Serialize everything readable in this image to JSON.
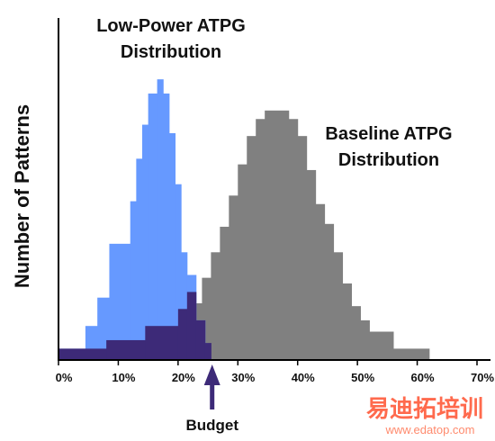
{
  "chart_data": {
    "type": "histogram",
    "ylabel": "Number of Patterns",
    "xlim": [
      0,
      72
    ],
    "ylim": [
      0,
      100
    ],
    "x_ticks": [
      "0%",
      "10%",
      "20%",
      "30%",
      "40%",
      "50%",
      "60%",
      "70%"
    ],
    "x_tick_values": [
      0,
      10,
      20,
      30,
      40,
      50,
      60,
      70
    ],
    "grid": false,
    "series": [
      {
        "key": "baseline",
        "color": "#808080",
        "bins": [
          {
            "x0": 21,
            "x1": 24,
            "y": 20
          },
          {
            "x0": 24,
            "x1": 25.5,
            "y": 29
          },
          {
            "x0": 25.5,
            "x1": 27,
            "y": 38
          },
          {
            "x0": 27,
            "x1": 28.5,
            "y": 47
          },
          {
            "x0": 28.5,
            "x1": 30,
            "y": 58
          },
          {
            "x0": 30,
            "x1": 31.5,
            "y": 69
          },
          {
            "x0": 31.5,
            "x1": 33,
            "y": 79
          },
          {
            "x0": 33,
            "x1": 34.5,
            "y": 85
          },
          {
            "x0": 34.5,
            "x1": 38.5,
            "y": 88
          },
          {
            "x0": 38.5,
            "x1": 40,
            "y": 85
          },
          {
            "x0": 40,
            "x1": 41.5,
            "y": 79
          },
          {
            "x0": 41.5,
            "x1": 43,
            "y": 67
          },
          {
            "x0": 43,
            "x1": 44.5,
            "y": 55
          },
          {
            "x0": 44.5,
            "x1": 46,
            "y": 48
          },
          {
            "x0": 46,
            "x1": 47.5,
            "y": 38
          },
          {
            "x0": 47.5,
            "x1": 49,
            "y": 27
          },
          {
            "x0": 49,
            "x1": 50.5,
            "y": 19
          },
          {
            "x0": 50.5,
            "x1": 52,
            "y": 14
          },
          {
            "x0": 52,
            "x1": 56,
            "y": 10
          },
          {
            "x0": 56,
            "x1": 62,
            "y": 4
          }
        ]
      },
      {
        "key": "low_power",
        "color": "#6699ff",
        "bins": [
          {
            "x0": 0,
            "x1": 4.5,
            "y": 4
          },
          {
            "x0": 4.5,
            "x1": 6.5,
            "y": 12
          },
          {
            "x0": 6.5,
            "x1": 8.5,
            "y": 22
          },
          {
            "x0": 8.5,
            "x1": 12,
            "y": 41
          },
          {
            "x0": 12,
            "x1": 13,
            "y": 56
          },
          {
            "x0": 13,
            "x1": 14,
            "y": 71
          },
          {
            "x0": 14,
            "x1": 15,
            "y": 83
          },
          {
            "x0": 15,
            "x1": 16.5,
            "y": 94
          },
          {
            "x0": 16.5,
            "x1": 17.5,
            "y": 99
          },
          {
            "x0": 17.5,
            "x1": 18.5,
            "y": 94
          },
          {
            "x0": 18.5,
            "x1": 19.5,
            "y": 80
          },
          {
            "x0": 19.5,
            "x1": 20.5,
            "y": 62
          },
          {
            "x0": 20.5,
            "x1": 21.5,
            "y": 38
          },
          {
            "x0": 21.5,
            "x1": 23,
            "y": 30
          },
          {
            "x0": 23,
            "x1": 24.5,
            "y": 14
          },
          {
            "x0": 24.5,
            "x1": 25,
            "y": 6
          }
        ]
      },
      {
        "key": "overlap",
        "color": "#3d2a78",
        "bins": [
          {
            "x0": 0,
            "x1": 8,
            "y": 4
          },
          {
            "x0": 8,
            "x1": 14.5,
            "y": 7
          },
          {
            "x0": 14.5,
            "x1": 20,
            "y": 12
          },
          {
            "x0": 20,
            "x1": 21.5,
            "y": 18
          },
          {
            "x0": 21.5,
            "x1": 23,
            "y": 24
          },
          {
            "x0": 23,
            "x1": 24.5,
            "y": 14
          },
          {
            "x0": 24.5,
            "x1": 25.5,
            "y": 6
          }
        ]
      }
    ],
    "annotations": [
      {
        "key": "low_power_title",
        "lines": [
          "Low-Power ATPG",
          "Distribution"
        ]
      },
      {
        "key": "baseline_title",
        "lines": [
          "Baseline ATPG",
          "Distribution"
        ]
      },
      {
        "key": "budget",
        "label": "Budget",
        "x": 26,
        "color": "#3d2a78"
      }
    ]
  },
  "watermark": {
    "text_cn": "易迪拓培训",
    "url": "www.edatop.com"
  }
}
